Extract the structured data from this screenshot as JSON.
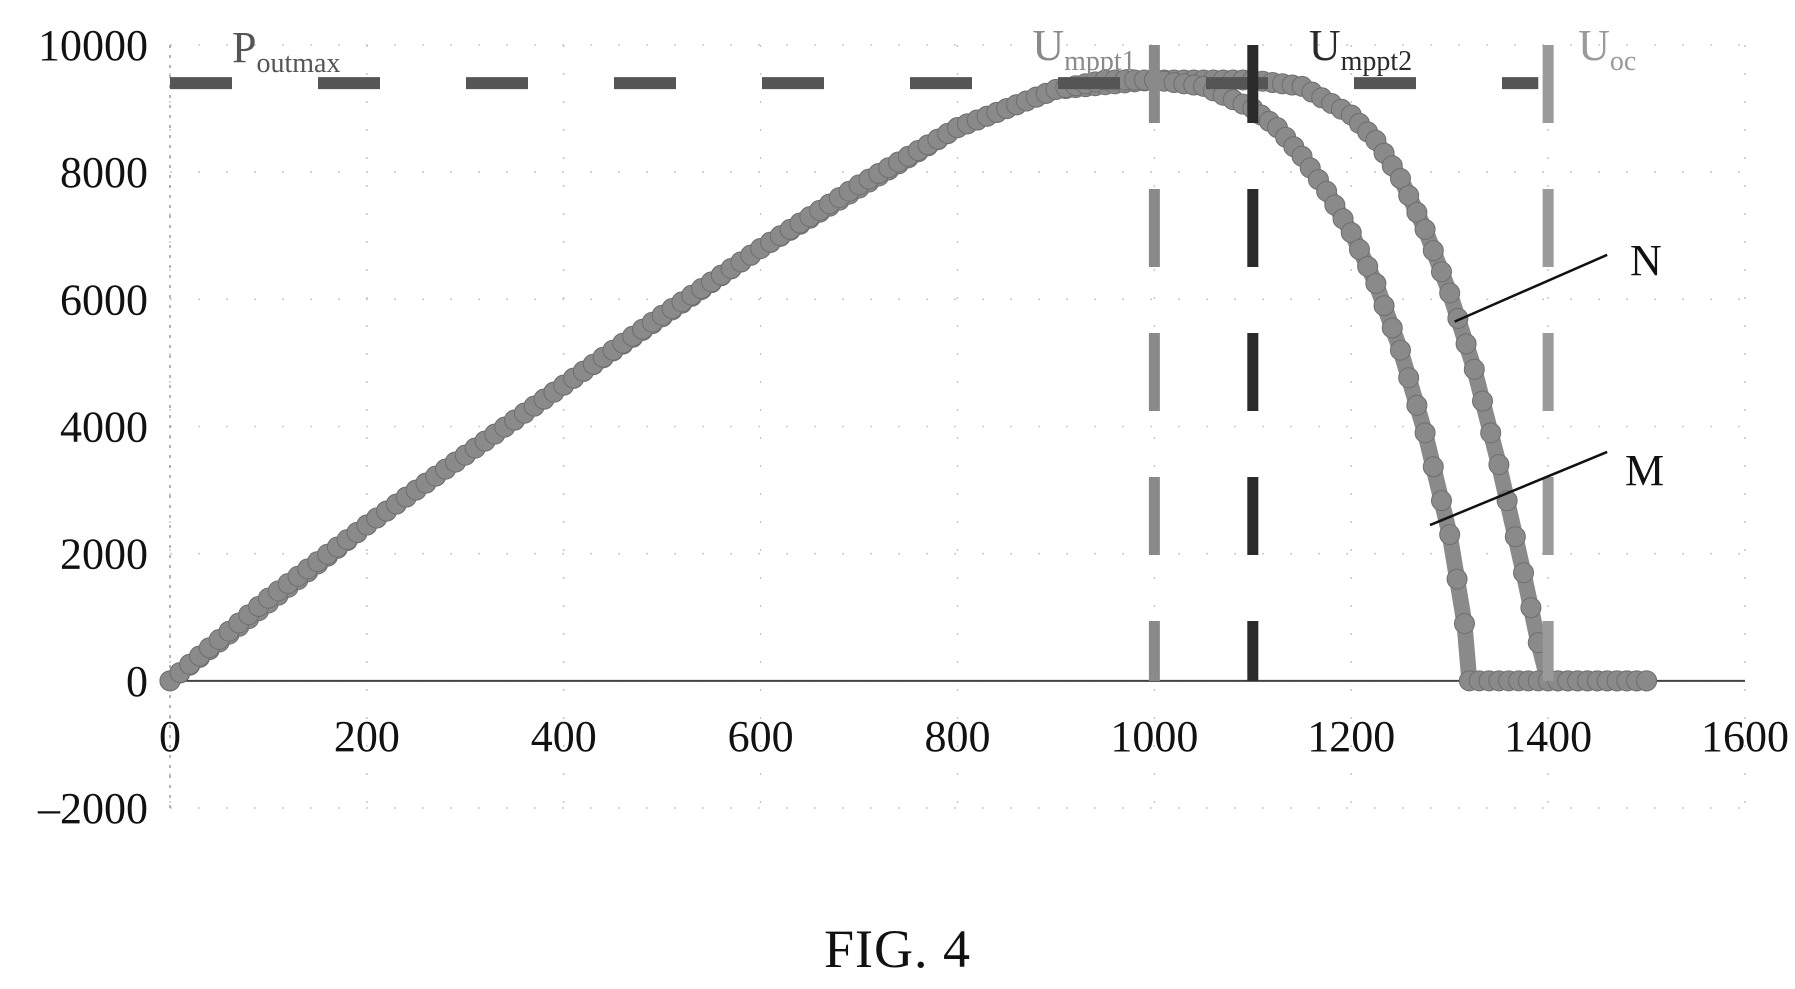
{
  "caption": "FIG. 4",
  "chart_data": {
    "type": "scatter",
    "title": "",
    "xlabel": "",
    "ylabel": "",
    "xlim": [
      0,
      1600
    ],
    "ylim": [
      -2000,
      10000
    ],
    "xticks": [
      0,
      200,
      400,
      600,
      800,
      1000,
      1200,
      1400,
      1600
    ],
    "yticks": [
      -2000,
      0,
      2000,
      4000,
      6000,
      8000,
      10000
    ],
    "xtick_labels": [
      "0",
      "200",
      "400",
      "600",
      "800",
      "1000",
      "1200",
      "1400",
      "1600"
    ],
    "ytick_labels": [
      "–2000",
      "0",
      "2000",
      "4000",
      "6000",
      "8000",
      "10000"
    ],
    "grid": "dotted",
    "series": [
      {
        "name": "M",
        "color": "#8a8a8a",
        "x": [
          0,
          100,
          200,
          300,
          400,
          500,
          600,
          700,
          800,
          900,
          950,
          1000,
          1050,
          1100,
          1125,
          1150,
          1175,
          1200,
          1225,
          1250,
          1275,
          1300,
          1315,
          1320,
          1350,
          1400,
          1450,
          1500
        ],
        "y": [
          0,
          1300,
          2450,
          3550,
          4650,
          5750,
          6800,
          7800,
          8700,
          9300,
          9450,
          9450,
          9350,
          9000,
          8700,
          8250,
          7700,
          7050,
          6250,
          5200,
          3900,
          2300,
          900,
          0,
          0,
          0,
          0,
          0
        ]
      },
      {
        "name": "N",
        "color": "#8a8a8a",
        "x": [
          0,
          200,
          400,
          600,
          800,
          900,
          1000,
          1050,
          1100,
          1150,
          1200,
          1225,
          1250,
          1275,
          1300,
          1325,
          1350,
          1375,
          1390,
          1400,
          1450,
          1500
        ],
        "y": [
          0,
          2450,
          4650,
          6800,
          8700,
          9300,
          9450,
          9450,
          9450,
          9350,
          8900,
          8500,
          7900,
          7100,
          6100,
          4900,
          3400,
          1700,
          600,
          0,
          0,
          0
        ]
      }
    ],
    "reference_lines": [
      {
        "label_main": "P",
        "label_sub": "outmax",
        "orientation": "horizontal",
        "value": 9400,
        "color": "#555555"
      },
      {
        "label_main": "U",
        "label_sub": "mppt1",
        "orientation": "vertical",
        "value": 1000,
        "color": "#8a8a8a"
      },
      {
        "label_main": "U",
        "label_sub": "mppt2",
        "orientation": "vertical",
        "value": 1100,
        "color": "#2a2a2a"
      },
      {
        "label_main": "U",
        "label_sub": "oc",
        "orientation": "vertical",
        "value": 1400,
        "color": "#9a9a9a"
      }
    ],
    "annotations": [
      {
        "text": "N",
        "target_series": "N",
        "at_x": 1305,
        "at_y": 5650
      },
      {
        "text": "M",
        "target_series": "M",
        "at_x": 1280,
        "at_y": 2450
      }
    ]
  }
}
